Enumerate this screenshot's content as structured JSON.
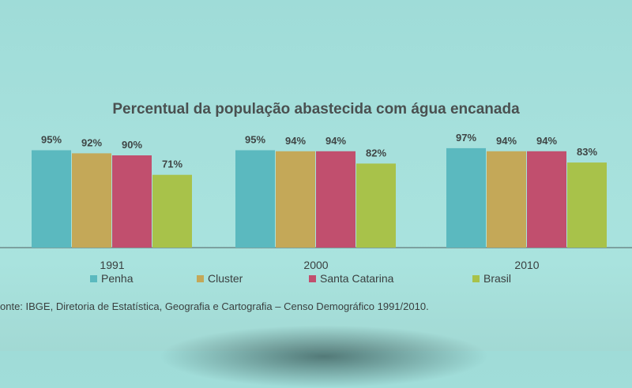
{
  "chart_data": {
    "type": "bar",
    "title": "Percentual da população abastecida com água encanada",
    "categories": [
      "1991",
      "2000",
      "2010"
    ],
    "series": [
      {
        "name": "Penha",
        "values": [
          95,
          95,
          97
        ],
        "labels": [
          "95%",
          "95%",
          "97%"
        ],
        "color": "#5bb9bf"
      },
      {
        "name": "Cluster",
        "values": [
          92,
          94,
          94
        ],
        "labels": [
          "92%",
          "94%",
          "94%"
        ],
        "color": "#c4a858"
      },
      {
        "name": "Santa Catarina",
        "values": [
          90,
          94,
          94
        ],
        "labels": [
          "90%",
          "94%",
          "94%"
        ],
        "color": "#c14f6e"
      },
      {
        "name": "Brasil",
        "values": [
          71,
          82,
          83
        ],
        "labels": [
          "71%",
          "82%",
          "83%"
        ],
        "color": "#a8c24a"
      }
    ],
    "xlabel": "",
    "ylabel": "",
    "ylim": [
      0,
      100
    ],
    "grid": false,
    "legend": "bottom"
  },
  "source": "onte: IBGE, Diretoria de Estatística, Geografia e Cartografia – Censo Demográfico 1991/2010."
}
